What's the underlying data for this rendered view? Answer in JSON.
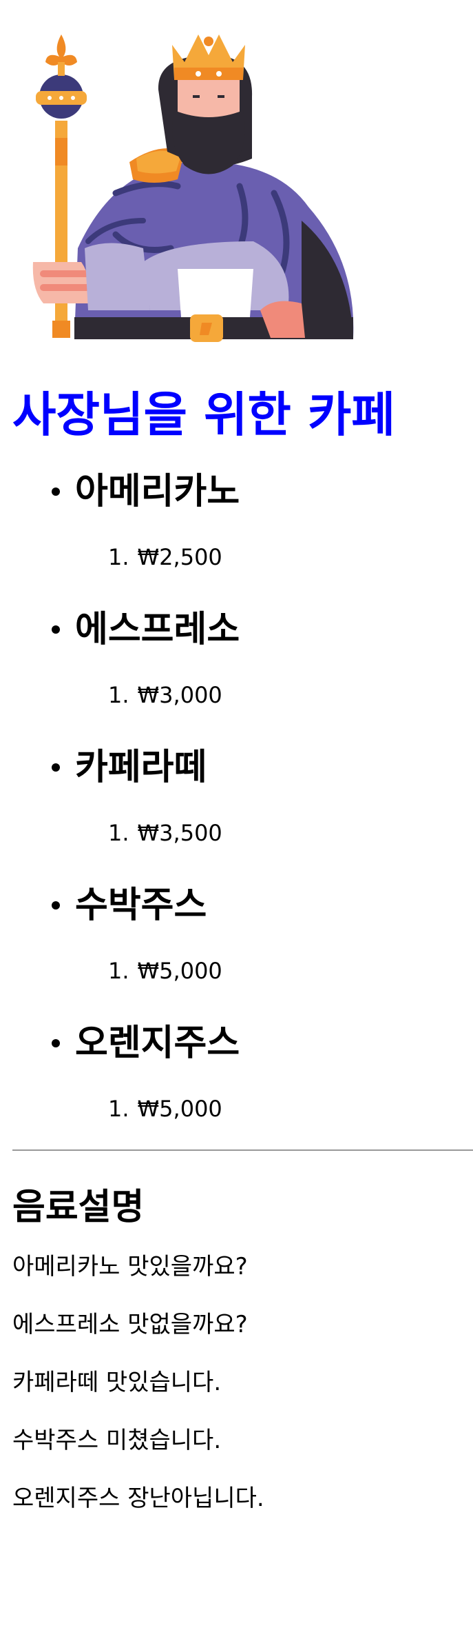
{
  "header": {
    "image_icon": "king-with-scepter-illustration",
    "title": "사장님을 위한 카페"
  },
  "menu": {
    "items": [
      {
        "name": "아메리카노",
        "number": "1.",
        "price": "₩2,500"
      },
      {
        "name": "에스프레소",
        "number": "1.",
        "price": "₩3,000"
      },
      {
        "name": "카페라떼",
        "number": "1.",
        "price": "₩3,500"
      },
      {
        "name": "수박주스",
        "number": "1.",
        "price": "₩5,000"
      },
      {
        "name": "오렌지주스",
        "number": "1.",
        "price": "₩5,000"
      }
    ]
  },
  "description": {
    "title": "음료설명",
    "lines": [
      "아메리카노 맛있을까요?",
      "에스프레소 맛없을까요?",
      "카페라떼 맛있습니다.",
      "수박주스 미쳤습니다.",
      "오렌지주스 장난아닙니다."
    ]
  },
  "colors": {
    "title": "#0000ff",
    "robe": "#6a5fb0",
    "robe_dark": "#3c3a7a",
    "gold": "#f5a83a",
    "gold_dark": "#f08a24",
    "beard": "#2e2a33",
    "skin": "#f6b8a8",
    "divider": "#999999"
  }
}
